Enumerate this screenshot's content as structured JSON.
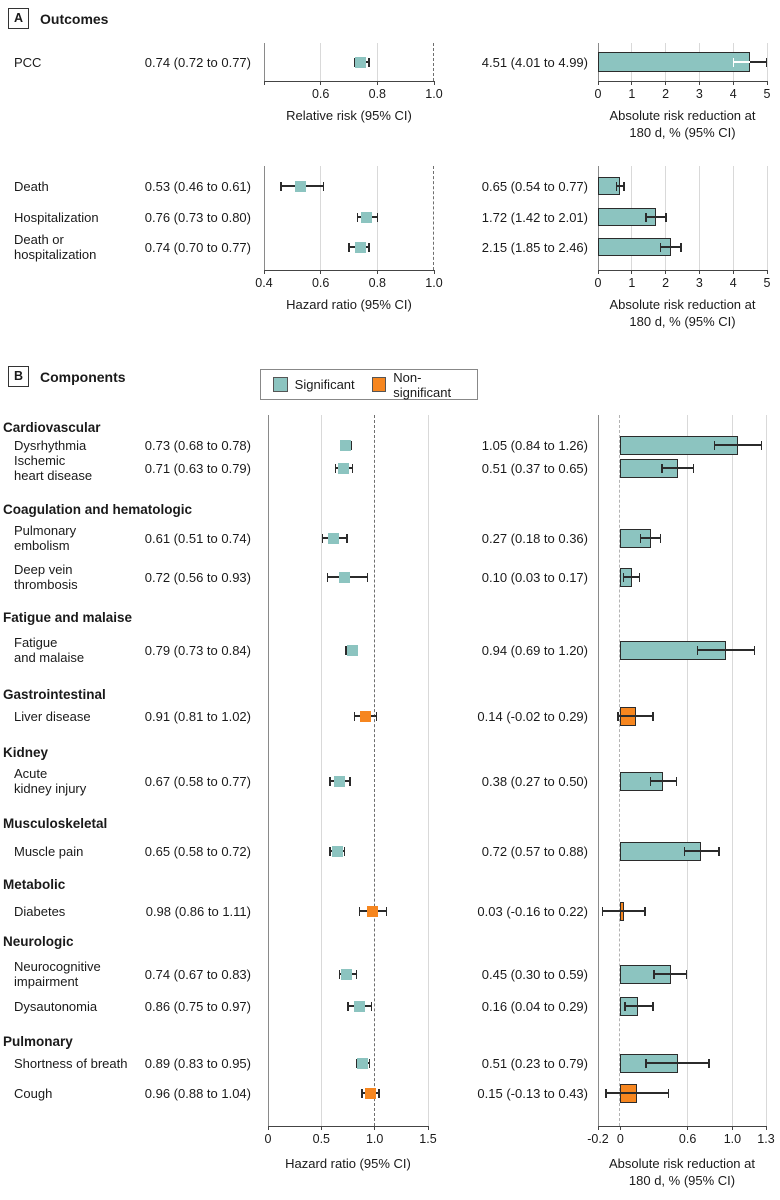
{
  "figure": {
    "panels": [
      {
        "label": "A",
        "title": "Outcomes"
      },
      {
        "label": "B",
        "title": "Components"
      }
    ],
    "legend": {
      "significant": "Significant",
      "nonsignificant": "Non-significant"
    }
  },
  "colors": {
    "significant": "#8CC4C0",
    "nonsignificant": "#F6861F",
    "ci": "#2b2b2b",
    "gridline": "#d9d9d9",
    "axis": "#444444",
    "text": "#1a1a1a"
  },
  "chart_data": [
    {
      "id": "outcomes-top",
      "panel": "A",
      "type": "forest+bar",
      "forest_axis": {
        "title_lines": [
          "Relative risk (95% CI)"
        ],
        "xlim": [
          0.4,
          1.0
        ],
        "ticks": [
          {
            "v": 0.4,
            "label": ""
          },
          {
            "v": 0.6,
            "label": "0.6"
          },
          {
            "v": 0.8,
            "label": "0.8"
          },
          {
            "v": 1.0,
            "label": "1.0"
          }
        ],
        "gridlines": [
          0.6,
          0.8
        ],
        "reference_line": 1.0
      },
      "bar_axis": {
        "title_lines": [
          "Absolute risk reduction at",
          "180 d, % (95% CI)"
        ],
        "xlim": [
          0,
          5
        ],
        "ticks": [
          {
            "v": 0,
            "label": "0"
          },
          {
            "v": 1,
            "label": "1"
          },
          {
            "v": 2,
            "label": "2"
          },
          {
            "v": 3,
            "label": "3"
          },
          {
            "v": 4,
            "label": "4"
          },
          {
            "v": 5,
            "label": "5"
          }
        ],
        "gridlines": [
          1,
          2,
          3,
          4,
          5
        ],
        "bar_baseline": 0
      },
      "rows": [
        {
          "label_lines": [
            "PCC"
          ],
          "forest_text": "0.74 (0.72 to 0.77)",
          "forest": {
            "est": 0.74,
            "lo": 0.72,
            "hi": 0.77
          },
          "bar_text": "4.51 (4.01 to 4.99)",
          "bar": {
            "est": 4.51,
            "lo": 4.01,
            "hi": 4.99
          },
          "significant": true,
          "bar_inner_white": true
        }
      ]
    },
    {
      "id": "outcomes-bottom",
      "panel": "A",
      "type": "forest+bar",
      "forest_axis": {
        "title_lines": [
          "Hazard ratio (95% CI)"
        ],
        "xlim": [
          0.4,
          1.0
        ],
        "ticks": [
          {
            "v": 0.4,
            "label": "0.4"
          },
          {
            "v": 0.6,
            "label": "0.6"
          },
          {
            "v": 0.8,
            "label": "0.8"
          },
          {
            "v": 1.0,
            "label": "1.0"
          }
        ],
        "gridlines": [
          0.6,
          0.8
        ],
        "reference_line": 1.0
      },
      "bar_axis": {
        "title_lines": [
          "Absolute risk reduction at",
          "180 d, % (95% CI)"
        ],
        "xlim": [
          0,
          5
        ],
        "ticks": [
          {
            "v": 0,
            "label": "0"
          },
          {
            "v": 1,
            "label": "1"
          },
          {
            "v": 2,
            "label": "2"
          },
          {
            "v": 3,
            "label": "3"
          },
          {
            "v": 4,
            "label": "4"
          },
          {
            "v": 5,
            "label": "5"
          }
        ],
        "gridlines": [
          1,
          2,
          3,
          4,
          5
        ],
        "bar_baseline": 0
      },
      "rows": [
        {
          "label_lines": [
            "Death"
          ],
          "forest_text": "0.53 (0.46 to 0.61)",
          "forest": {
            "est": 0.53,
            "lo": 0.46,
            "hi": 0.61
          },
          "bar_text": "0.65 (0.54 to 0.77)",
          "bar": {
            "est": 0.65,
            "lo": 0.54,
            "hi": 0.77
          },
          "significant": true
        },
        {
          "label_lines": [
            "Hospitalization"
          ],
          "forest_text": "0.76 (0.73 to 0.80)",
          "forest": {
            "est": 0.76,
            "lo": 0.73,
            "hi": 0.8
          },
          "bar_text": "1.72 (1.42 to 2.01)",
          "bar": {
            "est": 1.72,
            "lo": 1.42,
            "hi": 2.01
          },
          "significant": true
        },
        {
          "label_lines": [
            "Death or",
            "hospitalization"
          ],
          "forest_text": "0.74 (0.70 to 0.77)",
          "forest": {
            "est": 0.74,
            "lo": 0.7,
            "hi": 0.77
          },
          "bar_text": "2.15 (1.85 to 2.46)",
          "bar": {
            "est": 2.15,
            "lo": 1.85,
            "hi": 2.46
          },
          "significant": true
        }
      ]
    },
    {
      "id": "components",
      "panel": "B",
      "type": "forest+bar",
      "forest_axis": {
        "title_lines": [
          "Hazard ratio (95% CI)"
        ],
        "xlim": [
          0,
          1.5
        ],
        "ticks": [
          {
            "v": 0,
            "label": "0"
          },
          {
            "v": 0.5,
            "label": "0.5"
          },
          {
            "v": 1.0,
            "label": "1.0"
          },
          {
            "v": 1.5,
            "label": "1.5"
          }
        ],
        "gridlines": [
          0.5,
          1.5
        ],
        "reference_line": 1.0
      },
      "bar_axis": {
        "title_lines": [
          "Absolute risk reduction at",
          "180 d, % (95% CI)"
        ],
        "xlim": [
          -0.2,
          1.3
        ],
        "ticks": [
          {
            "v": -0.2,
            "label": "-0.2"
          },
          {
            "v": 0,
            "label": "0"
          },
          {
            "v": 0.6,
            "label": "0.6"
          },
          {
            "v": 1.0,
            "label": "1.0"
          },
          {
            "v": 1.3,
            "label": "1.3"
          }
        ],
        "gridlines": [
          0.6,
          1.0,
          1.3
        ],
        "reference_line": 0,
        "reference_light": true,
        "bar_baseline": 0
      },
      "groups": [
        {
          "name": "Cardiovascular",
          "rows": [
            {
              "label_lines": [
                "Dysrhythmia"
              ],
              "forest_text": "0.73 (0.68 to 0.78)",
              "forest": {
                "est": 0.73,
                "lo": 0.68,
                "hi": 0.78
              },
              "bar_text": "1.05 (0.84 to 1.26)",
              "bar": {
                "est": 1.05,
                "lo": 0.84,
                "hi": 1.26
              },
              "significant": true
            },
            {
              "label_lines": [
                "Ischemic",
                "heart disease"
              ],
              "forest_text": "0.71 (0.63 to 0.79)",
              "forest": {
                "est": 0.71,
                "lo": 0.63,
                "hi": 0.79
              },
              "bar_text": "0.51 (0.37 to 0.65)",
              "bar": {
                "est": 0.51,
                "lo": 0.37,
                "hi": 0.65
              },
              "significant": true
            }
          ]
        },
        {
          "name": "Coagulation and hematologic",
          "rows": [
            {
              "label_lines": [
                "Pulmonary",
                "embolism"
              ],
              "forest_text": "0.61 (0.51 to 0.74)",
              "forest": {
                "est": 0.61,
                "lo": 0.51,
                "hi": 0.74
              },
              "bar_text": "0.27 (0.18 to 0.36)",
              "bar": {
                "est": 0.27,
                "lo": 0.18,
                "hi": 0.36
              },
              "significant": true
            },
            {
              "label_lines": [
                "Deep vein",
                "thrombosis"
              ],
              "forest_text": "0.72 (0.56 to 0.93)",
              "forest": {
                "est": 0.72,
                "lo": 0.56,
                "hi": 0.93
              },
              "bar_text": "0.10 (0.03 to 0.17)",
              "bar": {
                "est": 0.1,
                "lo": 0.03,
                "hi": 0.17
              },
              "significant": true
            }
          ]
        },
        {
          "name": "Fatigue and malaise",
          "rows": [
            {
              "label_lines": [
                "Fatigue",
                "and malaise"
              ],
              "forest_text": "0.79 (0.73 to 0.84)",
              "forest": {
                "est": 0.79,
                "lo": 0.73,
                "hi": 0.84
              },
              "bar_text": "0.94 (0.69 to 1.20)",
              "bar": {
                "est": 0.94,
                "lo": 0.69,
                "hi": 1.2
              },
              "significant": true
            }
          ]
        },
        {
          "name": "Gastrointestinal",
          "rows": [
            {
              "label_lines": [
                "Liver disease"
              ],
              "forest_text": "0.91 (0.81 to 1.02)",
              "forest": {
                "est": 0.91,
                "lo": 0.81,
                "hi": 1.02
              },
              "bar_text": "0.14 (-0.02 to 0.29)",
              "bar": {
                "est": 0.14,
                "lo": -0.02,
                "hi": 0.29
              },
              "significant": false
            }
          ]
        },
        {
          "name": "Kidney",
          "rows": [
            {
              "label_lines": [
                "Acute",
                "kidney injury"
              ],
              "forest_text": "0.67 (0.58 to 0.77)",
              "forest": {
                "est": 0.67,
                "lo": 0.58,
                "hi": 0.77
              },
              "bar_text": "0.38 (0.27 to 0.50)",
              "bar": {
                "est": 0.38,
                "lo": 0.27,
                "hi": 0.5
              },
              "significant": true
            }
          ]
        },
        {
          "name": "Musculoskeletal",
          "rows": [
            {
              "label_lines": [
                "Muscle pain"
              ],
              "forest_text": "0.65 (0.58 to 0.72)",
              "forest": {
                "est": 0.65,
                "lo": 0.58,
                "hi": 0.72
              },
              "bar_text": "0.72 (0.57 to 0.88)",
              "bar": {
                "est": 0.72,
                "lo": 0.57,
                "hi": 0.88
              },
              "significant": true
            }
          ]
        },
        {
          "name": "Metabolic",
          "rows": [
            {
              "label_lines": [
                "Diabetes"
              ],
              "forest_text": "0.98 (0.86 to 1.11)",
              "forest": {
                "est": 0.98,
                "lo": 0.86,
                "hi": 1.11
              },
              "bar_text": "0.03 (-0.16 to 0.22)",
              "bar": {
                "est": 0.03,
                "lo": -0.16,
                "hi": 0.22
              },
              "significant": false
            }
          ]
        },
        {
          "name": "Neurologic",
          "rows": [
            {
              "label_lines": [
                "Neurocognitive",
                "impairment"
              ],
              "forest_text": "0.74 (0.67 to 0.83)",
              "forest": {
                "est": 0.74,
                "lo": 0.67,
                "hi": 0.83
              },
              "bar_text": "0.45 (0.30 to 0.59)",
              "bar": {
                "est": 0.45,
                "lo": 0.3,
                "hi": 0.59
              },
              "significant": true
            },
            {
              "label_lines": [
                "Dysautonomia"
              ],
              "forest_text": "0.86 (0.75 to 0.97)",
              "forest": {
                "est": 0.86,
                "lo": 0.75,
                "hi": 0.97
              },
              "bar_text": "0.16 (0.04 to 0.29)",
              "bar": {
                "est": 0.16,
                "lo": 0.04,
                "hi": 0.29
              },
              "significant": true
            }
          ]
        },
        {
          "name": "Pulmonary",
          "rows": [
            {
              "label_lines": [
                "Shortness of breath"
              ],
              "forest_text": "0.89 (0.83 to 0.95)",
              "forest": {
                "est": 0.89,
                "lo": 0.83,
                "hi": 0.95
              },
              "bar_text": "0.51 (0.23 to 0.79)",
              "bar": {
                "est": 0.51,
                "lo": 0.23,
                "hi": 0.79
              },
              "significant": true
            },
            {
              "label_lines": [
                "Cough"
              ],
              "forest_text": "0.96 (0.88 to 1.04)",
              "forest": {
                "est": 0.96,
                "lo": 0.88,
                "hi": 1.04
              },
              "bar_text": "0.15 (-0.13 to 0.43)",
              "bar": {
                "est": 0.15,
                "lo": -0.13,
                "hi": 0.43
              },
              "significant": false
            }
          ]
        }
      ]
    }
  ]
}
